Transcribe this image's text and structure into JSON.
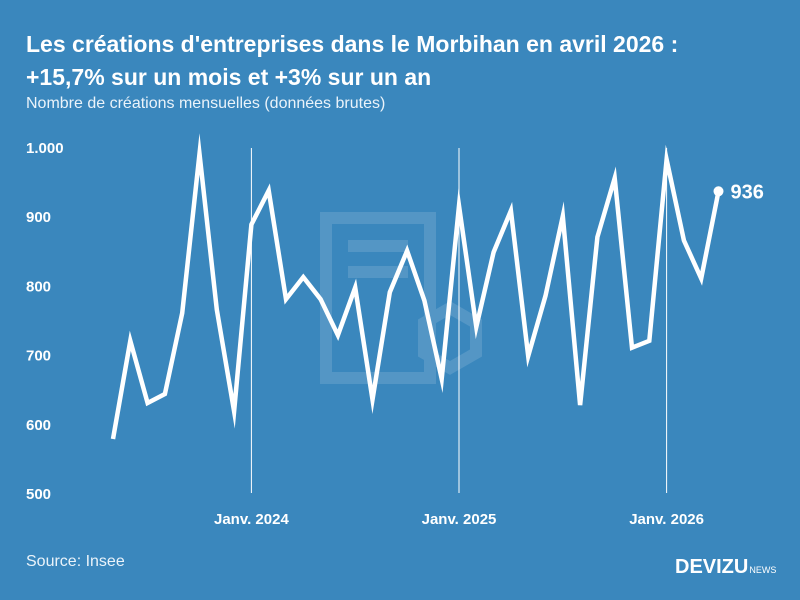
{
  "header": {
    "title_line1": "Les créations d'entreprises dans le Morbihan en avril 2026 :",
    "title_line2": "+15,7% sur un mois et +3% sur un an",
    "subtitle": "Nombre de créations mensuelles (données brutes)"
  },
  "footer": {
    "source": "Source: Insee",
    "brand": "DEVIZU",
    "brand_sub": "NEWS"
  },
  "colors": {
    "background": "#3a87bd",
    "line": "#ffffff"
  },
  "chart_data": {
    "type": "line",
    "title": "",
    "xlabel": "",
    "ylabel": "",
    "ylim": [
      500,
      1000
    ],
    "yticks": [
      500,
      600,
      700,
      800,
      900,
      1000
    ],
    "ytick_labels": [
      "500",
      "600",
      "700",
      "800",
      "900",
      "1.000"
    ],
    "x_start": "2023-05",
    "x_end": "2026-04",
    "xticks": [
      {
        "month": "2024-01",
        "label": "Janv. 2024"
      },
      {
        "month": "2025-01",
        "label": "Janv. 2025"
      },
      {
        "month": "2026-01",
        "label": "Janv. 2026"
      }
    ],
    "grid": "vertical lines at January",
    "series": [
      {
        "values": [
          578,
          720,
          630,
          643,
          760,
          990,
          765,
          618,
          888,
          937,
          780,
          812,
          780,
          728,
          797,
          635,
          790,
          850,
          778,
          665,
          915,
          740,
          848,
          908,
          698,
          785,
          900,
          627,
          870,
          955,
          710,
          720,
          982,
          865,
          810,
          936
        ]
      }
    ],
    "end_label": "936"
  }
}
